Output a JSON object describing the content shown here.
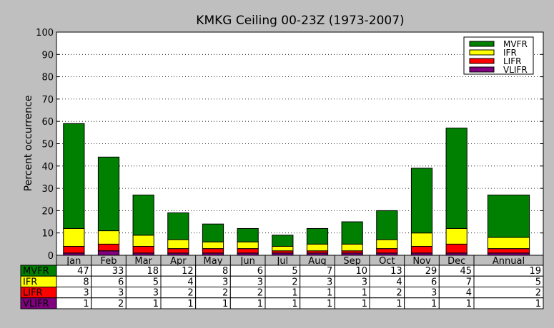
{
  "chart_data": {
    "type": "bar",
    "stacked": true,
    "title": "KMKG Ceiling 00-23Z (1973-2007)",
    "ylabel": "Percent occurrence",
    "xlabel": "",
    "ylim": [
      0,
      100
    ],
    "yticks": [
      0,
      10,
      20,
      30,
      40,
      50,
      60,
      70,
      80,
      90,
      100
    ],
    "grid": "horizontal dotted",
    "legend_position": "top-right",
    "categories": [
      "Jan",
      "Feb",
      "Mar",
      "Apr",
      "May",
      "Jun",
      "Jul",
      "Aug",
      "Sep",
      "Oct",
      "Nov",
      "Dec",
      "Annual"
    ],
    "series": [
      {
        "name": "VLIFR",
        "color": "#800080",
        "values": [
          1,
          2,
          1,
          1,
          1,
          1,
          1,
          1,
          1,
          1,
          1,
          1,
          1
        ]
      },
      {
        "name": "LIFR",
        "color": "#ff0000",
        "values": [
          3,
          3,
          3,
          2,
          2,
          2,
          1,
          1,
          1,
          2,
          3,
          4,
          2
        ]
      },
      {
        "name": "IFR",
        "color": "#ffff00",
        "values": [
          8,
          6,
          5,
          4,
          3,
          3,
          2,
          3,
          3,
          4,
          6,
          7,
          5
        ]
      },
      {
        "name": "MVFR",
        "color": "#008000",
        "values": [
          47,
          33,
          18,
          12,
          8,
          6,
          5,
          7,
          10,
          13,
          29,
          45,
          19
        ]
      }
    ],
    "table_rows": [
      "MVFR",
      "IFR",
      "LIFR",
      "VLIFR"
    ]
  }
}
